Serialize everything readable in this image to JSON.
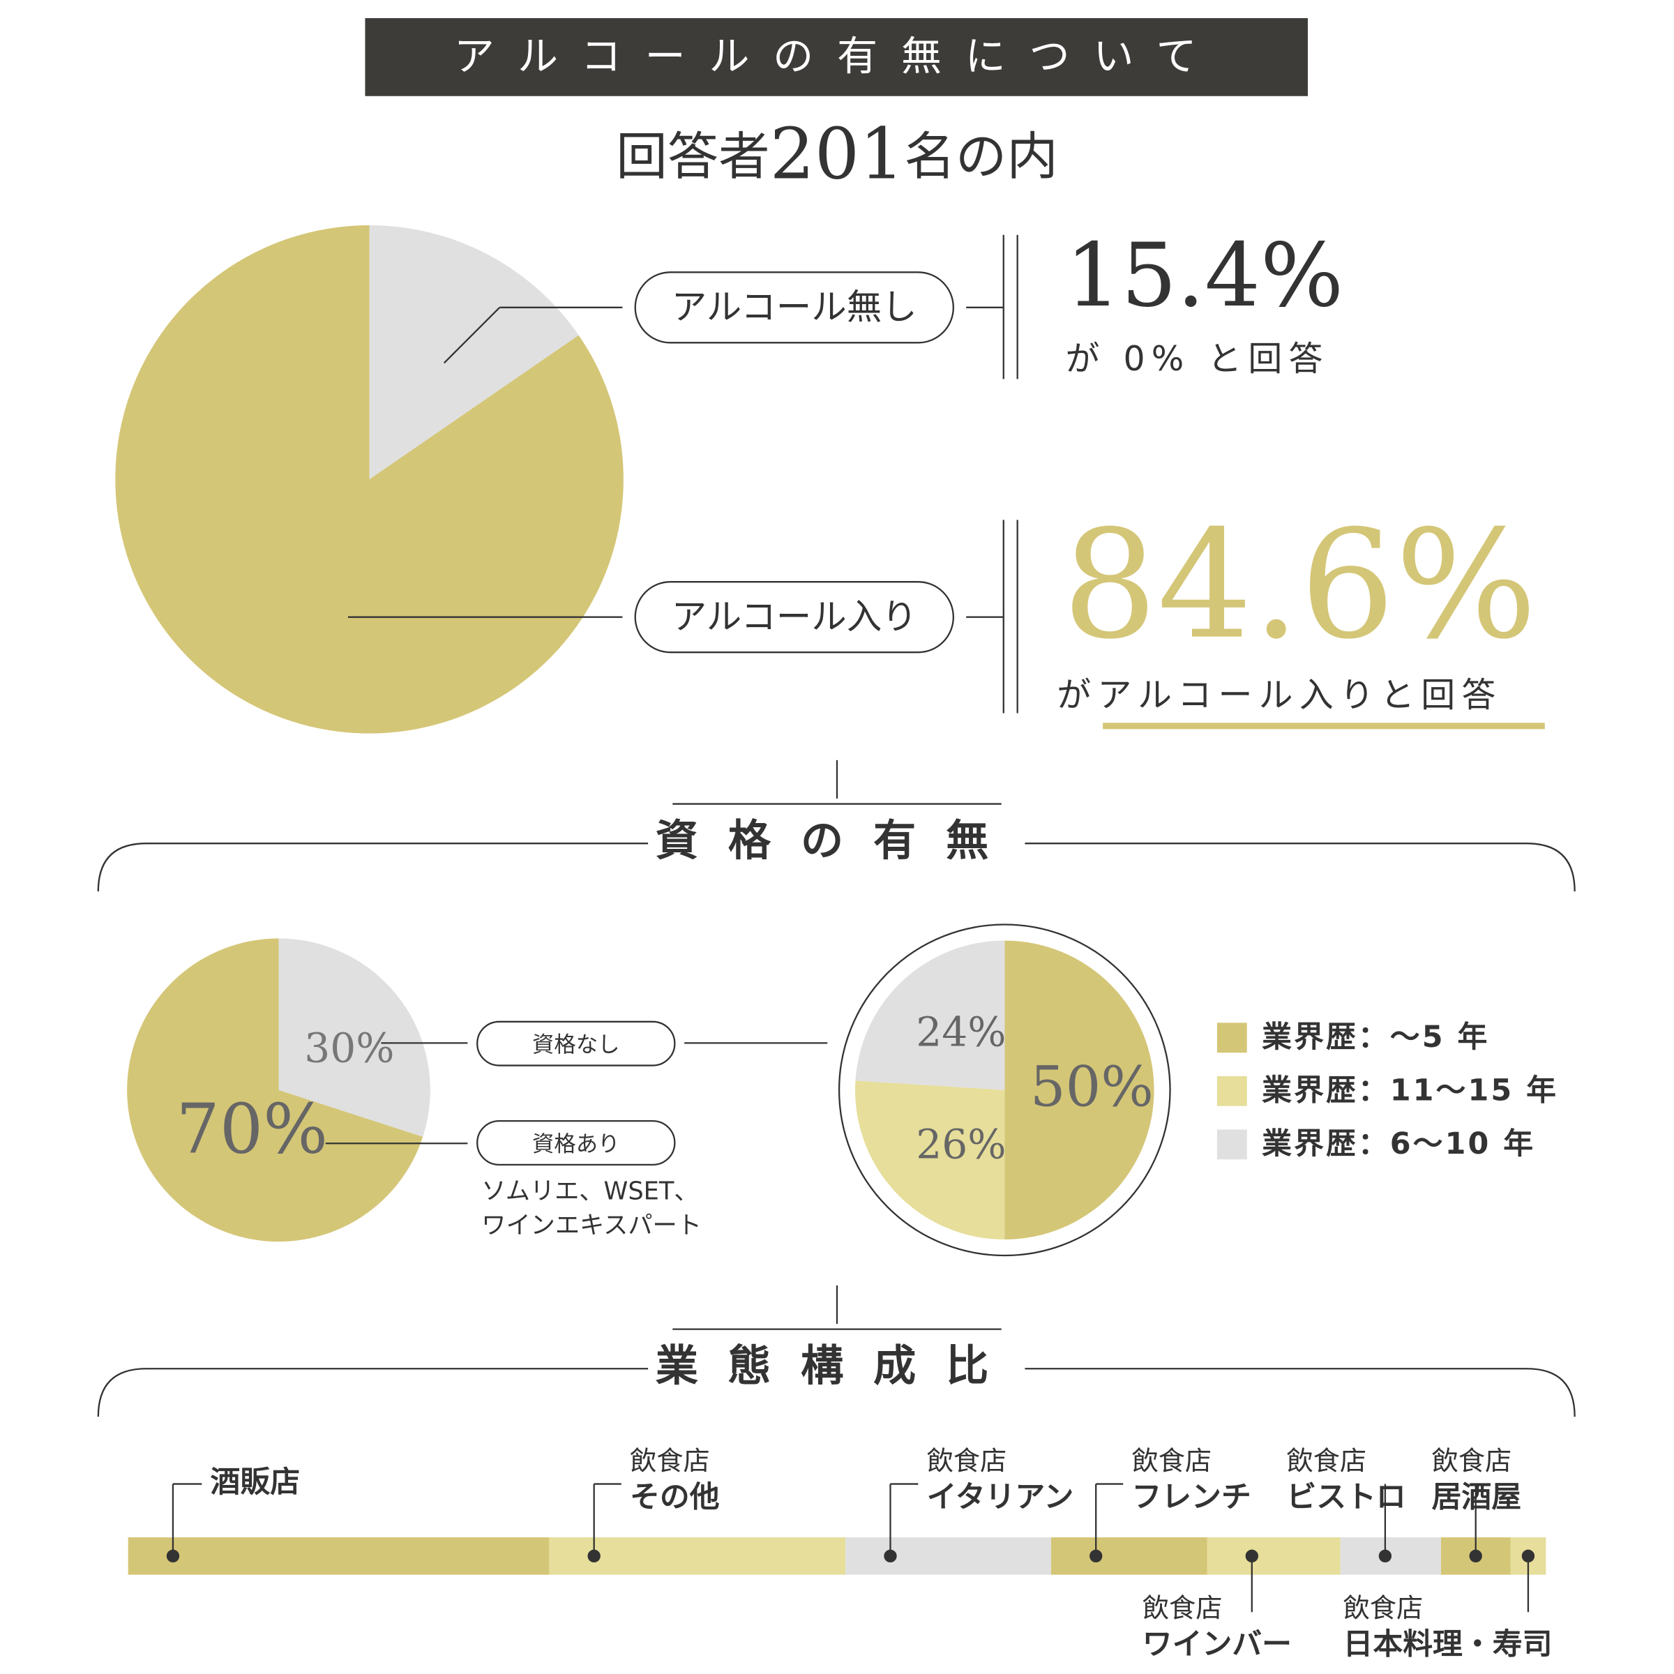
{
  "header": {
    "title": "アルコールの有無について",
    "respondents": {
      "prefix": "回答者",
      "count": 201,
      "suffix": "名の内"
    }
  },
  "sections": [
    "資格の有無",
    "業態構成比"
  ],
  "chart_data": [
    {
      "type": "pie",
      "categories": [
        "アルコール無し",
        "アルコール入り"
      ],
      "values": [
        15.4,
        84.6
      ],
      "value_labels": [
        "15.4%",
        "84.6%"
      ],
      "colors": [
        "#e0e0e0",
        "#d4c677"
      ],
      "notes": [
        "が 0% と回答",
        "がアルコール入りと回答"
      ]
    },
    {
      "type": "pie",
      "categories": [
        "資格なし",
        "資格あり"
      ],
      "values": [
        30,
        70
      ],
      "value_labels": [
        "30%",
        "70%"
      ],
      "colors": [
        "#e0e0e0",
        "#d4c677"
      ],
      "note": [
        "ソムリエ、WSET、",
        "ワインエキスパート"
      ]
    },
    {
      "type": "pie",
      "categories": [
        "業界歴：〜5 年",
        "業界歴：11〜15 年",
        "業界歴：6〜10 年"
      ],
      "values": [
        50,
        26,
        24
      ],
      "value_labels": [
        "50%",
        "26%",
        "24%"
      ],
      "colors": [
        "#d4c677",
        "#e6de9a",
        "#e0e0e0"
      ],
      "legend": "right"
    },
    {
      "type": "bar",
      "orientation": "horizontal",
      "stacked": true,
      "xlim": [
        0,
        100
      ],
      "categories": [
        "酒販店",
        "その他",
        "イタリアン",
        "フレンチ",
        "ワインバー",
        "ビストロ",
        "居酒屋",
        "日本料理・寿司"
      ],
      "groups": [
        null,
        "飲食店",
        "飲食店",
        "飲食店",
        "飲食店",
        "飲食店",
        "飲食店",
        "飲食店"
      ],
      "values": [
        29.7,
        20.9,
        14.5,
        11.0,
        9.4,
        7.1,
        4.9,
        2.5
      ],
      "colors": [
        "#d4c677",
        "#e6de9a",
        "#e0e0e0",
        "#d4c677",
        "#e6de9a",
        "#e0e0e0",
        "#d4c677",
        "#e6de9a"
      ]
    }
  ]
}
